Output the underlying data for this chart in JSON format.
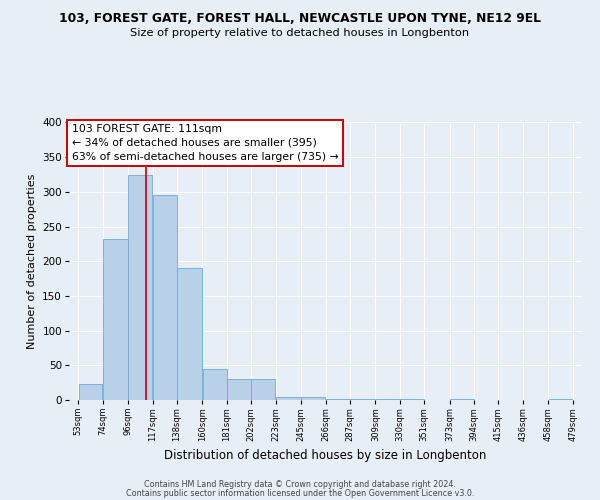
{
  "title_line1": "103, FOREST GATE, FOREST HALL, NEWCASTLE UPON TYNE, NE12 9EL",
  "title_line2": "Size of property relative to detached houses in Longbenton",
  "xlabel": "Distribution of detached houses by size in Longbenton",
  "ylabel": "Number of detached properties",
  "bar_left_edges": [
    53,
    74,
    96,
    117,
    138,
    160,
    181,
    202,
    223,
    245,
    266,
    287,
    309,
    330,
    351,
    373,
    394,
    415,
    436,
    458
  ],
  "bar_widths": [
    21,
    22,
    21,
    21,
    22,
    21,
    21,
    21,
    22,
    21,
    21,
    22,
    21,
    21,
    22,
    21,
    21,
    21,
    22,
    21
  ],
  "bar_heights": [
    23,
    232,
    325,
    296,
    190,
    44,
    30,
    30,
    5,
    5,
    2,
    1,
    1,
    1,
    0,
    1,
    0,
    0,
    0,
    2
  ],
  "tick_labels": [
    "53sqm",
    "74sqm",
    "96sqm",
    "117sqm",
    "138sqm",
    "160sqm",
    "181sqm",
    "202sqm",
    "223sqm",
    "245sqm",
    "266sqm",
    "287sqm",
    "309sqm",
    "330sqm",
    "351sqm",
    "373sqm",
    "394sqm",
    "415sqm",
    "436sqm",
    "458sqm",
    "479sqm"
  ],
  "tick_positions": [
    53,
    74,
    96,
    117,
    138,
    160,
    181,
    202,
    223,
    245,
    266,
    287,
    309,
    330,
    351,
    373,
    394,
    415,
    436,
    458,
    479
  ],
  "bar_color": "#b8d0e8",
  "bar_edge_color": "#6aaed6",
  "ylim": [
    0,
    400
  ],
  "yticks": [
    0,
    50,
    100,
    150,
    200,
    250,
    300,
    350,
    400
  ],
  "property_value": 111,
  "vline_color": "#cc0000",
  "annotation_line1": "103 FOREST GATE: 111sqm",
  "annotation_line2": "← 34% of detached houses are smaller (395)",
  "annotation_line3": "63% of semi-detached houses are larger (735) →",
  "annotation_box_color": "#ffffff",
  "annotation_box_edge": "#cc0000",
  "footer_line1": "Contains HM Land Registry data © Crown copyright and database right 2024.",
  "footer_line2": "Contains public sector information licensed under the Open Government Licence v3.0.",
  "bg_color": "#e8eef5",
  "plot_bg_color": "#e8eef5"
}
